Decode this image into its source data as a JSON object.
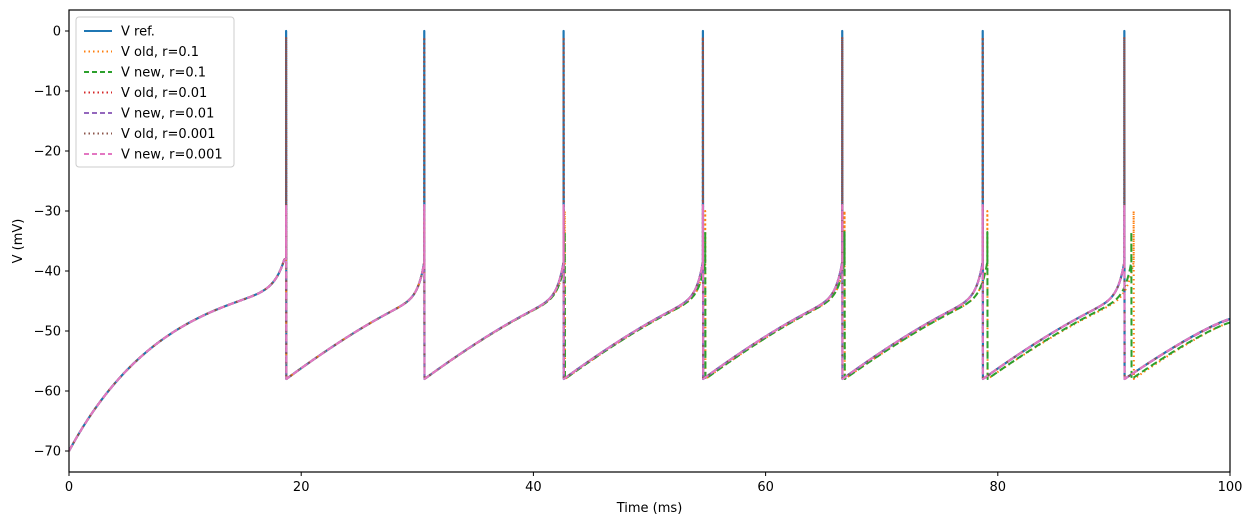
{
  "chart_data": {
    "type": "line",
    "title": "",
    "xlabel": "Time (ms)",
    "ylabel": "V (mV)",
    "xlim": [
      0,
      100
    ],
    "ylim": [
      -73.5,
      3.5
    ],
    "xticks": [
      0,
      20,
      40,
      60,
      80,
      100
    ],
    "xtick_labels": [
      "0",
      "20",
      "40",
      "60",
      "80",
      "100"
    ],
    "yticks": [
      0,
      -10,
      -20,
      -30,
      -40,
      -50,
      -60,
      -70
    ],
    "ytick_labels": [
      "0",
      "−10",
      "−20",
      "−30",
      "−40",
      "−50",
      "−60",
      "−70"
    ],
    "grid": false,
    "legend_position": "upper left",
    "model": {
      "v_init": -70,
      "v_reset": -58,
      "spike_peak": 0
    },
    "series": [
      {
        "name": "V ref.",
        "color": "#1f77b4",
        "style": "solid",
        "width": 2.2,
        "spike_times": [
          18.7,
          30.6,
          42.6,
          54.6,
          66.6,
          78.7,
          90.9
        ],
        "spike_peak": 0,
        "end_value": -48.0
      },
      {
        "name": "V old, r=0.1",
        "color": "#ff7f0e",
        "style": "dotted",
        "width": 2.0,
        "spike_times": [
          18.7,
          30.6,
          42.7,
          54.8,
          66.8,
          79.1,
          91.7
        ],
        "spike_peak": -30,
        "end_value": -48.6
      },
      {
        "name": "V new, r=0.1",
        "color": "#2ca02c",
        "style": "dashed",
        "width": 2.0,
        "spike_times": [
          18.7,
          30.6,
          42.7,
          54.8,
          66.8,
          79.1,
          91.5
        ],
        "spike_peak": -33.5,
        "end_value": -48.6
      },
      {
        "name": "V old, r=0.01",
        "color": "#d62728",
        "style": "dotted",
        "width": 2.0,
        "spike_times": [
          18.7,
          30.6,
          42.6,
          54.6,
          66.6,
          78.7,
          90.9
        ],
        "spike_peak": -1,
        "end_value": -48.1
      },
      {
        "name": "V new, r=0.01",
        "color": "#9467bd",
        "style": "dashed",
        "width": 2.0,
        "spike_times": [
          18.7,
          30.6,
          42.6,
          54.6,
          66.6,
          78.7,
          90.9
        ],
        "spike_peak": -30,
        "end_value": -48.1
      },
      {
        "name": "V old, r=0.001",
        "color": "#8c564b",
        "style": "dotted",
        "width": 2.0,
        "spike_times": [
          18.7,
          30.6,
          42.6,
          54.6,
          66.6,
          78.7,
          90.9
        ],
        "spike_peak": -1,
        "end_value": -48.0
      },
      {
        "name": "V new, r=0.001",
        "color": "#e377c2",
        "style": "dashed",
        "width": 2.0,
        "spike_times": [
          18.7,
          30.6,
          42.6,
          54.6,
          66.6,
          78.7,
          90.9
        ],
        "spike_peak": -29,
        "end_value": -48.0
      }
    ]
  },
  "axes": {
    "xlabel": "Time (ms)",
    "ylabel": "V (mV)"
  },
  "legend": {
    "entries": [
      {
        "label": "V ref.",
        "color": "#1f77b4",
        "style": "solid"
      },
      {
        "label": "V old, r=0.1",
        "color": "#ff7f0e",
        "style": "dotted"
      },
      {
        "label": "V new, r=0.1",
        "color": "#2ca02c",
        "style": "dashed"
      },
      {
        "label": "V old, r=0.01",
        "color": "#d62728",
        "style": "dotted"
      },
      {
        "label": "V new, r=0.01",
        "color": "#9467bd",
        "style": "dashed"
      },
      {
        "label": "V old, r=0.001",
        "color": "#8c564b",
        "style": "dotted"
      },
      {
        "label": "V new, r=0.001",
        "color": "#e377c2",
        "style": "dashed"
      }
    ]
  }
}
